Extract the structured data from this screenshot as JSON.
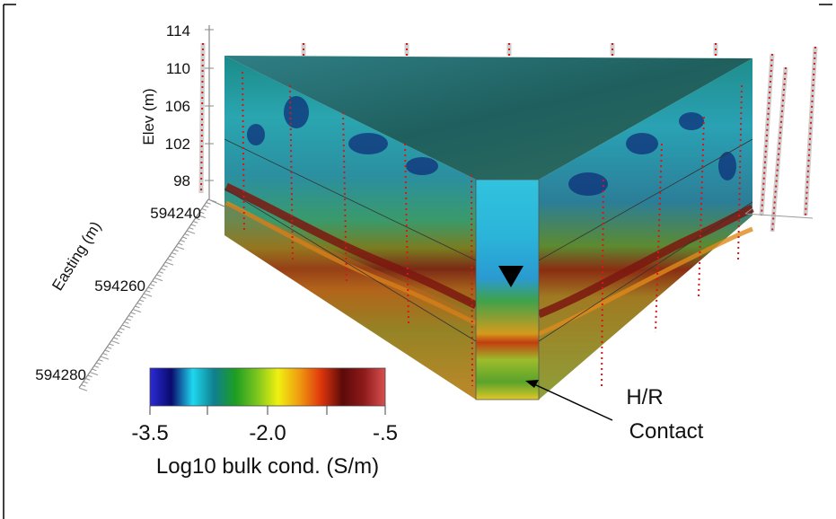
{
  "elevation_axis": {
    "label": "Elev (m)",
    "ticks": [
      "114",
      "110",
      "106",
      "102",
      "98"
    ]
  },
  "easting_axis": {
    "label": "Easting (m)",
    "ticks": [
      "594240",
      "594260",
      "594280"
    ]
  },
  "annotation": {
    "line1": "H/R",
    "line2": "Contact"
  },
  "colorbar": {
    "stops": [
      "#2b2bd6",
      "#0a0a6e",
      "#1fd7ee",
      "#0f7f8f",
      "#1e9e22",
      "#7cc51e",
      "#f0f011",
      "#f09a10",
      "#e0360c",
      "#5c0a0a",
      "#8e1a1a",
      "#d85050"
    ],
    "ticks": [
      "-3.5",
      "-2.0",
      "-.5"
    ],
    "label": "Log10 bulk cond. (S/m)"
  }
}
